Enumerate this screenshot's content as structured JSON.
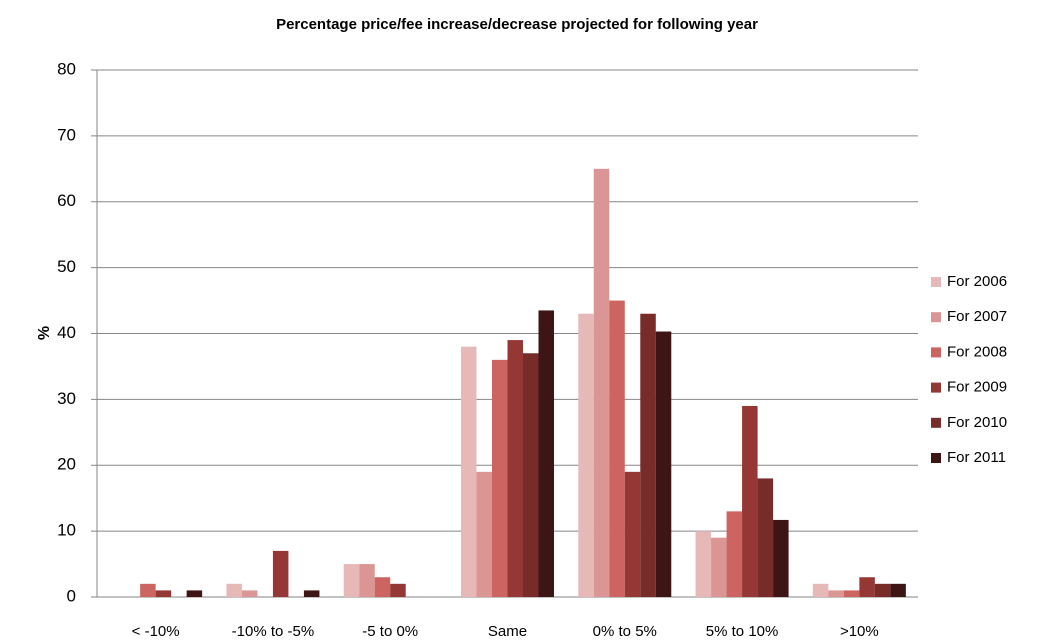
{
  "chart_data": {
    "type": "bar",
    "title": "Percentage price/fee increase/decrease projected for following year",
    "y_label": "%",
    "categories": [
      "< -10%",
      "-10% to -5%",
      "-5 to 0%",
      "Same",
      "0% to 5%",
      "5% to 10%",
      ">10%"
    ],
    "series": [
      {
        "name": "For 2006",
        "color": "#e6b9b8",
        "values": [
          0,
          2,
          5,
          38,
          43,
          10,
          2
        ]
      },
      {
        "name": "For 2007",
        "color": "#d99694",
        "values": [
          0,
          1,
          5,
          19,
          65,
          9,
          1
        ]
      },
      {
        "name": "For 2008",
        "color": "#cc6562",
        "values": [
          2,
          0,
          3,
          36,
          45,
          13,
          1
        ]
      },
      {
        "name": "For 2009",
        "color": "#953735",
        "values": [
          1,
          7,
          2,
          39,
          19,
          29,
          3
        ]
      },
      {
        "name": "For 2010",
        "color": "#772c2a",
        "values": [
          0,
          0,
          0,
          37,
          43,
          18,
          2
        ]
      },
      {
        "name": "For 2011",
        "color": "#3d1514",
        "values": [
          1,
          1,
          0,
          43.5,
          40.3,
          11.7,
          2
        ]
      }
    ],
    "ylim": [
      0,
      80
    ],
    "yticks": [
      0,
      10,
      20,
      30,
      40,
      50,
      60,
      70,
      80
    ],
    "grid": true,
    "legend": "right"
  }
}
